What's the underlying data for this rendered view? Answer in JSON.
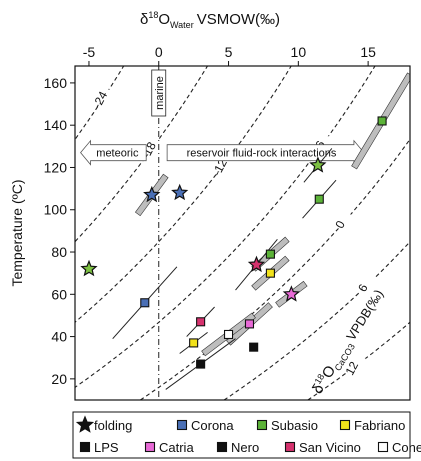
{
  "chart_data": {
    "type": "scatter",
    "x_axis": {
      "label": "δ18O Water VSMOW(‰)",
      "label_parts": {
        "delta": "δ",
        "sup": "18",
        "o": "O",
        "sub": "Water",
        "rest": "VSMOW(‰)"
      },
      "position": "top",
      "range": [
        -6,
        18
      ],
      "ticks": [
        -5,
        0,
        5,
        10,
        15
      ]
    },
    "y_axis": {
      "label": "Temperature (ºC)",
      "range": [
        10,
        168
      ],
      "ticks": [
        20,
        40,
        60,
        80,
        100,
        120,
        140,
        160
      ]
    },
    "reference_line": {
      "x": 0,
      "style": "dash-dot",
      "label": "marine"
    },
    "regions": {
      "left_label": "meteoric",
      "right_label": "reservoir fluid-rock interactions"
    },
    "contours": {
      "legend_parts": {
        "delta": "δ",
        "sup": "18",
        "o": "O",
        "sub": "CaCO3",
        "rest": "VPDB(‰)"
      },
      "values": [
        -24,
        -18,
        -12,
        -6,
        0,
        6,
        12
      ],
      "labels": [
        "-24",
        "-18",
        "-12",
        "-6",
        "0",
        "6",
        "12"
      ]
    },
    "series": [
      {
        "name": "folding",
        "marker": "star",
        "points": [
          {
            "x": -5.0,
            "y": 72,
            "color": "#7dc142"
          },
          {
            "x": -0.5,
            "y": 107,
            "color": "#4a6fb5"
          },
          {
            "x": 1.5,
            "y": 108,
            "color": "#4a6fb5"
          },
          {
            "x": 7.0,
            "y": 74,
            "color": "#d6326e"
          },
          {
            "x": 11.4,
            "y": 121,
            "color": "#7dc142"
          },
          {
            "x": 9.5,
            "y": 60,
            "color": "#e86ad6"
          }
        ]
      },
      {
        "name": "Corona",
        "marker": "square",
        "color": "#4a6fb5",
        "points": [
          {
            "x": -1.0,
            "y": 56
          }
        ]
      },
      {
        "name": "Subasio",
        "marker": "square",
        "color": "#5cb338",
        "points": [
          {
            "x": 11.5,
            "y": 105
          },
          {
            "x": 8.0,
            "y": 79
          },
          {
            "x": 16.0,
            "y": 142
          }
        ]
      },
      {
        "name": "Fabriano",
        "marker": "square",
        "color": "#f2e21b",
        "points": [
          {
            "x": 8.0,
            "y": 70
          },
          {
            "x": 2.5,
            "y": 37
          }
        ]
      },
      {
        "name": "LPS",
        "marker": "square",
        "color": "#111111",
        "points": [
          {
            "x": 3.0,
            "y": 27
          }
        ]
      },
      {
        "name": "Catria",
        "marker": "square",
        "color": "#e86ad6",
        "points": [
          {
            "x": 6.5,
            "y": 46
          }
        ]
      },
      {
        "name": "Nero",
        "marker": "square",
        "color": "#111111",
        "points": [
          {
            "x": 6.8,
            "y": 35
          }
        ]
      },
      {
        "name": "San Vicino",
        "marker": "square",
        "color": "#d6326e",
        "points": [
          {
            "x": 3.0,
            "y": 47
          }
        ]
      },
      {
        "name": "Conero",
        "marker": "square",
        "color": "#ffffff",
        "points": [
          {
            "x": 5.0,
            "y": 41
          }
        ]
      }
    ],
    "legend": {
      "position": "bottom",
      "rows": [
        [
          {
            "name": "folding",
            "marker": "star",
            "color": "#111111"
          },
          {
            "name": "Corona",
            "marker": "square",
            "color": "#4a6fb5"
          },
          {
            "name": "Subasio",
            "marker": "square",
            "color": "#5cb338"
          },
          {
            "name": "Fabriano",
            "marker": "square",
            "color": "#f2e21b"
          }
        ],
        [
          {
            "name": "LPS",
            "marker": "square",
            "color": "#111111"
          },
          {
            "name": "Catria",
            "marker": "square",
            "color": "#e86ad6"
          },
          {
            "name": "Nero",
            "marker": "square",
            "color": "#111111"
          },
          {
            "name": "San Vicino",
            "marker": "square",
            "color": "#d6326e"
          },
          {
            "name": "Conero",
            "marker": "square",
            "color": "#ffffff"
          }
        ]
      ]
    },
    "grid": false
  }
}
